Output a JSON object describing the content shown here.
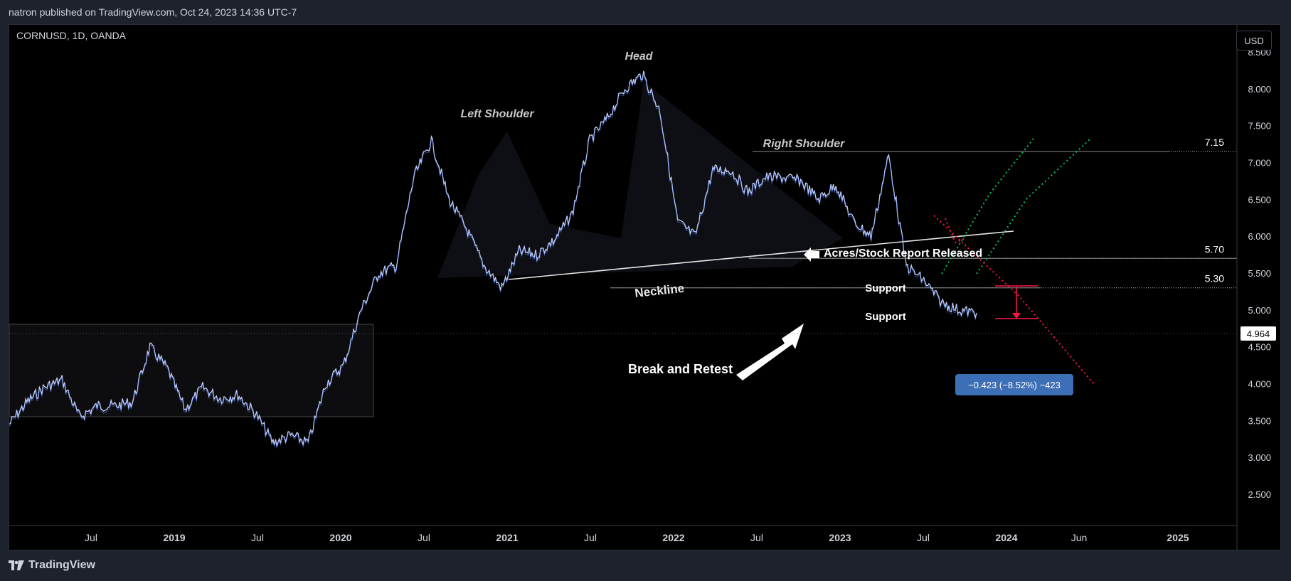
{
  "header": {
    "publisher_line": "natron published on TradingView.com, Oct 24, 2023 14:36 UTC-7"
  },
  "chart_header": {
    "symbol_line": "CORNUSD, 1D, OANDA",
    "currency_button": "USD"
  },
  "footer": {
    "brand": "TradingView"
  },
  "colors": {
    "background": "#000000",
    "candle": "#c7d3ff",
    "candle_accent": "#5b8cff",
    "axis_text": "#d1d4dc",
    "target_up": "#00c853",
    "target_down": "#ff1744",
    "measure": "#ff1744",
    "measure_label_bg": "#3d6fb6"
  },
  "chart_data": {
    "type": "line",
    "title": "CORNUSD, 1D, OANDA",
    "y_scale": "linear",
    "ylim": [
      2.5,
      8.5
    ],
    "y_ticks": [
      "8.500",
      "8.000",
      "7.500",
      "7.000",
      "6.500",
      "6.000",
      "5.500",
      "5.000",
      "4.500",
      "4.000",
      "3.500",
      "3.000",
      "2.500"
    ],
    "x_tick_labels": [
      "Jul",
      "2019",
      "Jul",
      "2020",
      "Jul",
      "2021",
      "Jul",
      "2022",
      "Jul",
      "2023",
      "Jul",
      "2024",
      "Jun",
      "2025"
    ],
    "series": [
      {
        "x": [
          "2018-04",
          "2018-06",
          "2018-08",
          "2018-09",
          "2018-11",
          "2019-01",
          "2019-03",
          "2019-05",
          "2019-06",
          "2019-07",
          "2019-08",
          "2019-09",
          "2019-11",
          "2020-01",
          "2020-02",
          "2020-04",
          "2020-06",
          "2020-08",
          "2020-10",
          "2020-12",
          "2021-01",
          "2021-02",
          "2021-03",
          "2021-04",
          "2021-05",
          "2021-06",
          "2021-07",
          "2021-08",
          "2021-09",
          "2021-10",
          "2021-11",
          "2021-12",
          "2022-01",
          "2022-02",
          "2022-03",
          "2022-04",
          "2022-05",
          "2022-06",
          "2022-07",
          "2022-08",
          "2022-09",
          "2022-10",
          "2022-11",
          "2022-12",
          "2023-01",
          "2023-02",
          "2023-03",
          "2023-04",
          "2023-05",
          "2023-06",
          "2023-06b",
          "2023-07",
          "2023-07b",
          "2023-08",
          "2023-09",
          "2023-10"
        ],
        "y": [
          3.45,
          3.75,
          3.95,
          4.05,
          3.55,
          3.7,
          3.7,
          3.75,
          4.5,
          4.2,
          3.65,
          3.95,
          3.8,
          3.85,
          3.6,
          3.2,
          3.3,
          3.2,
          4.0,
          4.25,
          5.0,
          5.5,
          5.6,
          6.8,
          7.3,
          6.5,
          6.1,
          5.6,
          5.3,
          5.8,
          5.75,
          5.95,
          6.3,
          7.3,
          7.6,
          8.0,
          8.2,
          7.7,
          6.2,
          6.0,
          6.9,
          6.9,
          6.6,
          6.8,
          6.8,
          6.75,
          6.5,
          6.7,
          6.2,
          6.0,
          7.1,
          5.6,
          5.4,
          5.1,
          5.0,
          4.96
        ]
      }
    ],
    "last_price": "4.964",
    "levels": [
      {
        "label": "7.15",
        "value": 7.15
      },
      {
        "label": "5.70",
        "value": 5.7
      },
      {
        "label": "5.30",
        "value": 5.3
      }
    ],
    "annotations": {
      "head": "Head",
      "left_shoulder": "Left Shoulder",
      "right_shoulder": "Right Shoulder",
      "neckline": "Neckline",
      "report": "Acres/Stock Report Released",
      "support_upper": "Support",
      "support_lower": "Support",
      "break_retest": "Break and Retest"
    },
    "measure_label": "−0.423 (−8.52%) −423"
  }
}
